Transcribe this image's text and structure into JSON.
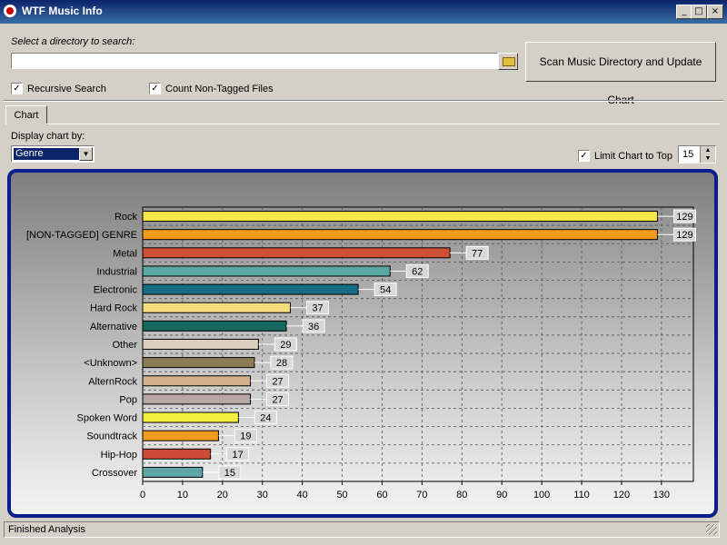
{
  "window": {
    "title": "WTF Music Info",
    "min": "_",
    "max": "□",
    "close": "×"
  },
  "search": {
    "prompt": "Select a directory to search:",
    "path_value": "",
    "scan_button": "Scan Music Directory and Update Chart",
    "recursive": {
      "label": "Recursive Search",
      "checked": true
    },
    "count_untagged": {
      "label": "Count Non-Tagged Files",
      "checked": true
    }
  },
  "tabs": [
    {
      "label": "Chart"
    }
  ],
  "display": {
    "label": "Display chart by:",
    "selected": "Genre"
  },
  "limit": {
    "label": "Limit Chart to Top",
    "checked": true,
    "value": "15"
  },
  "status": "Finished Analysis",
  "chart_data": {
    "type": "bar",
    "orientation": "horizontal",
    "categories": [
      "Rock",
      "[NON-TAGGED] GENRE",
      "Metal",
      "Industrial",
      "Electronic",
      "Hard Rock",
      "Alternative",
      "Other",
      "<Unknown>",
      "AlternRock",
      "Pop",
      "Spoken Word",
      "Soundtrack",
      "Hip-Hop",
      "Crossover"
    ],
    "values": [
      129,
      129,
      77,
      62,
      54,
      37,
      36,
      29,
      28,
      27,
      27,
      24,
      19,
      17,
      15
    ],
    "colors": [
      "#f7e645",
      "#f39a1e",
      "#cf4f33",
      "#5aa6a3",
      "#176c86",
      "#f5dc7e",
      "#16685e",
      "#dbd0bd",
      "#8c7b55",
      "#d4b08a",
      "#b8a5a8",
      "#f4ee3f",
      "#ef9b20",
      "#cd4b35",
      "#5da6a5"
    ],
    "xlim": [
      0,
      138
    ],
    "xticks": [
      0,
      10,
      20,
      30,
      40,
      50,
      60,
      70,
      80,
      90,
      100,
      110,
      120,
      130
    ],
    "grid": true,
    "data_labels": true
  }
}
